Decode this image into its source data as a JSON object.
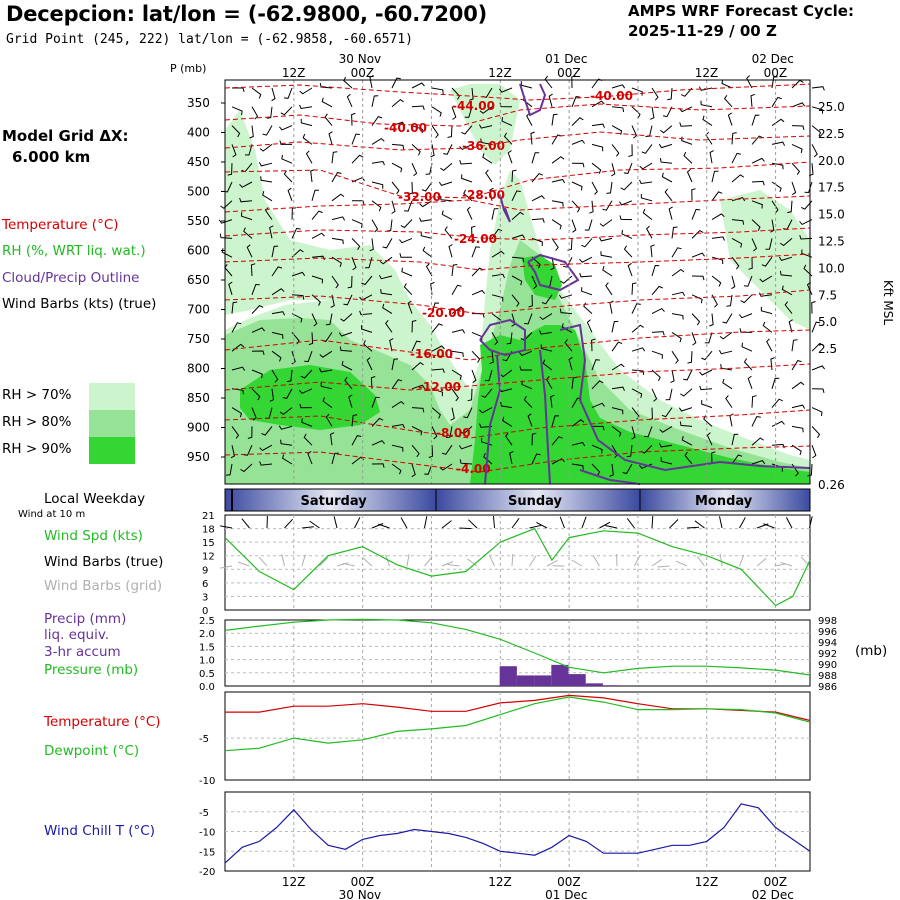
{
  "header": {
    "title": "Decepcion:  lat/lon = (-62.9800, -60.7200)",
    "subtitle": "Grid Point (245, 222) lat/lon = (-62.9858, -60.6571)",
    "cycle_line1": "AMPS WRF Forecast Cycle:",
    "cycle_line2": "2025-11-29 / 00  Z"
  },
  "side_labels": {
    "model_grid_1": "Model Grid ΔX:",
    "model_grid_2": "6.000 km",
    "temperature": "Temperature (°C)",
    "rh": "RH (%, WRT liq. wat.)",
    "cloud": "Cloud/Precip Outline",
    "wind_barbs": "Wind Barbs (kts) (true)",
    "rh70": "RH > 70%",
    "rh80": "RH > 80%",
    "rh90": "RH > 90%",
    "local_weekday": "Local Weekday",
    "wind_10m": "Wind at 10 m",
    "wind_spd": "Wind Spd (kts)",
    "wind_barbs_true": "Wind Barbs (true)",
    "wind_barbs_grid": "Wind Barbs (grid)",
    "precip1": "Precip (mm)",
    "precip2": "liq. equiv.",
    "precip3": "3-hr accum",
    "pressure": "Pressure (mb)",
    "pressure_unit": "(mb)",
    "temp2": "Temperature (°C)",
    "dewpoint": "Dewpoint (°C)",
    "windchill": "Wind Chill T (°C)",
    "kft": "Kft MSL"
  },
  "colors": {
    "temp": "#d40000",
    "green": "#22bb22",
    "purple": "#663399",
    "navy": "#1a1aa6",
    "rh70": "#cdf5cd",
    "rh80": "#96e296",
    "rh90": "#33d633",
    "gray": "#b0b0b0"
  },
  "time_axis": {
    "top_dates": [
      "30 Nov",
      "01 Dec",
      "02 Dec"
    ],
    "top_hours": [
      "12Z",
      "00Z",
      "12Z",
      "00Z",
      "12Z",
      "00Z"
    ],
    "bottom_hours": [
      "12Z",
      "00Z",
      "12Z",
      "00Z",
      "12Z",
      "00Z"
    ],
    "bottom_dates": [
      "30 Nov",
      "01 Dec",
      "02 Dec"
    ],
    "weekdays": [
      "Saturday",
      "Sunday",
      "Monday"
    ]
  },
  "chart_data": [
    {
      "type": "heatmap",
      "name": "vertical-cross-section",
      "y_label_left": "P (mb)",
      "pressure_levels": [
        350,
        400,
        450,
        500,
        550,
        600,
        650,
        700,
        750,
        800,
        850,
        900,
        950
      ],
      "kft_ticks": [
        "25.0",
        "22.5",
        "20.0",
        "17.5",
        "15.0",
        "12.5",
        "10.0",
        "7.5",
        "5.0",
        "2.5",
        "0.26"
      ],
      "temperature_labels": [
        "-44.00",
        "-40.00",
        "-40.00",
        "-36.00",
        "-32.00",
        "-28.00",
        "-24.00",
        "-20.00",
        "-16.00",
        "-12.00",
        "-8.00",
        "-4.00"
      ],
      "temperature_label_levels": [
        -44,
        -40,
        -40,
        -36,
        -32,
        -28,
        -24,
        -20,
        -16,
        -12,
        -8,
        -4
      ]
    },
    {
      "type": "line",
      "name": "wind-speed",
      "ylim": [
        0,
        21
      ],
      "yticks": [
        "0",
        "3",
        "6",
        "9",
        "12",
        "15",
        "18",
        "21"
      ],
      "x_hours": [
        0,
        6,
        12,
        18,
        24,
        30,
        36,
        42,
        48,
        54,
        57,
        60,
        66,
        72,
        78,
        84,
        90,
        96,
        99,
        102
      ],
      "values": [
        16,
        8.5,
        4.5,
        12,
        14,
        10,
        7.5,
        8.5,
        15,
        18,
        11,
        16,
        17.5,
        17,
        14,
        12,
        9,
        1,
        3,
        11
      ]
    },
    {
      "type": "bar",
      "name": "precip-pressure",
      "precip_ylim": [
        0,
        2.5
      ],
      "precip_yticks": [
        "0.0",
        "0.5",
        "1.0",
        "1.5",
        "2.0",
        "2.5"
      ],
      "precip_x_hours": [
        48,
        51,
        54,
        57,
        60,
        63,
        66
      ],
      "precip_values": [
        0.75,
        0.4,
        0.4,
        0.8,
        0.45,
        0.1,
        0.03
      ],
      "pressure_ylim": [
        986,
        998
      ],
      "pressure_yticks": [
        "986",
        "988",
        "990",
        "992",
        "994",
        "996",
        "998"
      ],
      "pressure_x_hours": [
        0,
        6,
        12,
        18,
        24,
        30,
        36,
        42,
        48,
        54,
        60,
        66,
        72,
        78,
        84,
        90,
        96,
        102
      ],
      "pressure_values": [
        996.1,
        996.9,
        997.6,
        998.0,
        998.1,
        998.0,
        997.5,
        996.3,
        994.5,
        992.0,
        989.4,
        988.4,
        989.2,
        989.6,
        989.6,
        989.3,
        988.9,
        988.0
      ]
    },
    {
      "type": "line",
      "name": "temperature-dewpoint",
      "ylim": [
        -10,
        0.5
      ],
      "yticks": [
        "-5",
        "-10"
      ],
      "x_hours": [
        0,
        6,
        12,
        18,
        24,
        30,
        36,
        42,
        48,
        54,
        60,
        66,
        72,
        78,
        84,
        90,
        96,
        102
      ],
      "temperature": [
        -1.9,
        -1.9,
        -1.2,
        -1.2,
        -0.9,
        -1.3,
        -1.8,
        -1.8,
        -0.8,
        -0.5,
        0.1,
        -0.2,
        -0.9,
        -1.5,
        -1.5,
        -1.7,
        -1.9,
        -2.9
      ],
      "dewpoint": [
        -6.5,
        -6.2,
        -5.0,
        -5.6,
        -5.2,
        -4.2,
        -3.9,
        -3.5,
        -2.2,
        -0.9,
        -0.1,
        -0.7,
        -1.6,
        -1.6,
        -1.5,
        -1.6,
        -2.0,
        -3.1
      ],
      "temperature_name": "Temperature (°C)",
      "dewpoint_name": "Dewpoint (°C)"
    },
    {
      "type": "line",
      "name": "wind-chill",
      "ylim": [
        -20,
        0
      ],
      "yticks": [
        "-5",
        "-10",
        "-15",
        "-20"
      ],
      "x_hours": [
        0,
        3,
        6,
        9,
        12,
        15,
        18,
        21,
        24,
        27,
        30,
        33,
        36,
        39,
        42,
        45,
        48,
        51,
        54,
        57,
        60,
        63,
        66,
        69,
        72,
        75,
        78,
        81,
        84,
        87,
        90,
        93,
        96,
        99,
        102
      ],
      "values": [
        -18,
        -14,
        -12.5,
        -9,
        -4.5,
        -9.5,
        -13.5,
        -14.5,
        -12,
        -11,
        -10.5,
        -9.5,
        -10,
        -10.5,
        -11.5,
        -13,
        -15,
        -15.5,
        -16,
        -14,
        -11,
        -12.5,
        -15.5,
        -15.5,
        -15.5,
        -14.5,
        -13.5,
        -13.5,
        -12.5,
        -9,
        -3,
        -4,
        -9,
        -12,
        -15
      ]
    }
  ]
}
